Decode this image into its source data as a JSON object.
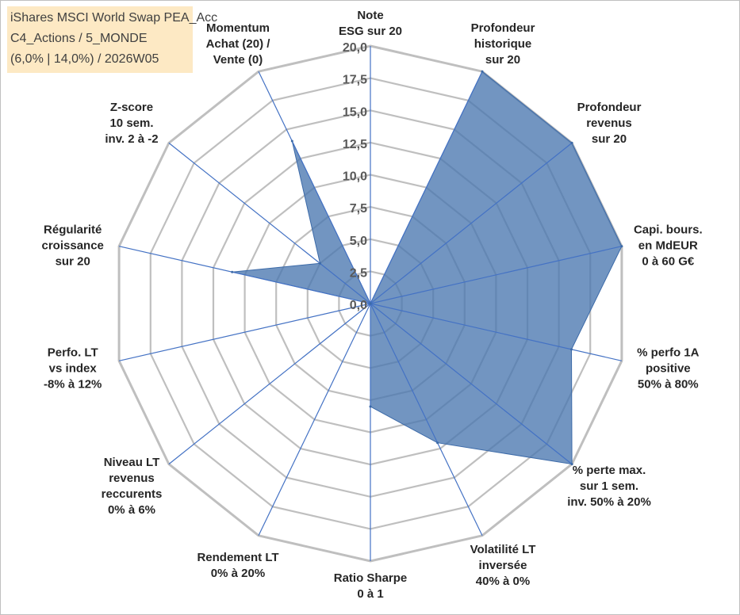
{
  "title_box": {
    "line1": "iShares MSCI World Swap PEA_Acc",
    "line2": "C4_Actions / 5_MONDE",
    "line3": "(6,0% | 14,0%) / 2026W05"
  },
  "colors": {
    "grid": "#bfbfbf",
    "axis": "#4472c4",
    "fill": "#4a77b0",
    "label": "#262626",
    "title_bg": "#fde9c4"
  },
  "chart_data": {
    "type": "radar",
    "rmin": 0,
    "rmax": 20,
    "tick_step": 2.5,
    "tick_labels": [
      "0,0",
      "2,5",
      "5,0",
      "7,5",
      "10,0",
      "12,5",
      "15,0",
      "17,5",
      "20,0"
    ],
    "axes": [
      {
        "label": [
          "Note",
          "ESG sur 20"
        ],
        "value": 0
      },
      {
        "label": [
          "Profondeur",
          "historique",
          "sur 20"
        ],
        "value": 20
      },
      {
        "label": [
          "Profondeur",
          "revenus",
          "sur 20"
        ],
        "value": 20
      },
      {
        "label": [
          "Capi. bours.",
          "en MdEUR",
          "0 à 60 G€"
        ],
        "value": 20
      },
      {
        "label": [
          "% perfo 1A",
          "positive",
          "50% à 80%"
        ],
        "value": 16
      },
      {
        "label": [
          "% perte max.",
          "sur 1 sem.",
          "inv. 50% à 20%"
        ],
        "value": 20
      },
      {
        "label": [
          "Volatilité LT",
          "inversée",
          "40% à 0%"
        ],
        "value": 12
      },
      {
        "label": [
          "Ratio Sharpe",
          "0 à 1"
        ],
        "value": 8
      },
      {
        "label": [
          "Rendement LT",
          "0% à 20%"
        ],
        "value": 0
      },
      {
        "label": [
          "Niveau LT",
          "revenus",
          "reccurents",
          "0% à 6%"
        ],
        "value": 0
      },
      {
        "label": [
          "Perfo. LT",
          "vs index",
          "-8% à 12%"
        ],
        "value": 0
      },
      {
        "label": [
          "Régularité",
          "croissance",
          "sur 20"
        ],
        "value": 11
      },
      {
        "label": [
          "Z-score",
          "10 sem.",
          "inv. 2 à -2"
        ],
        "value": 5
      },
      {
        "label": [
          "Momentum",
          "Achat (20) /",
          "Vente (0)"
        ],
        "value": 14
      }
    ]
  }
}
